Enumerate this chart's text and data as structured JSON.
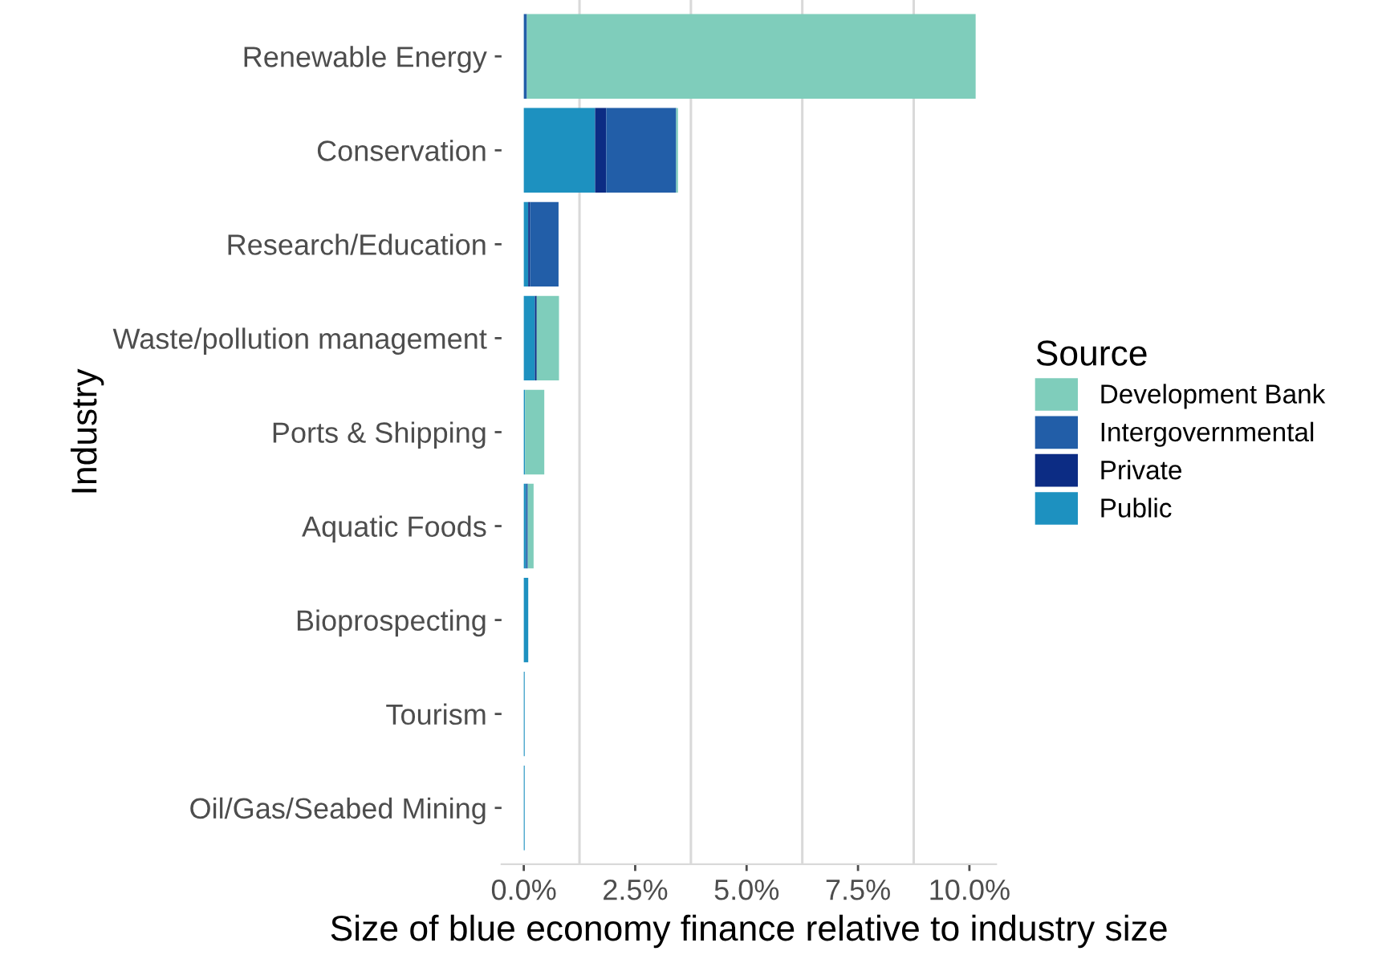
{
  "chart_data": {
    "type": "bar",
    "orientation": "horizontal",
    "stacked": true,
    "xlabel": "Size of blue economy finance relative to industry size",
    "ylabel": "Industry",
    "legend_title": "Source",
    "legend": "right",
    "grid": "x",
    "categories": [
      "Renewable Energy",
      "Conservation",
      "Research/Education",
      "Waste/pollution management",
      "Ports & Shipping",
      "Aquatic Foods",
      "Bioprospecting",
      "Tourism",
      "Oil/Gas/Seabed Mining"
    ],
    "xlim": [
      -0.5,
      10.6
    ],
    "xticks": [
      {
        "value": 0,
        "label": "0.0%"
      },
      {
        "value": 2.5,
        "label": "2.5%"
      },
      {
        "value": 5,
        "label": "5.0%"
      },
      {
        "value": 7.5,
        "label": "7.5%"
      },
      {
        "value": 10,
        "label": "10.0%"
      },
      {
        "value": 1.25,
        "label": null
      },
      {
        "value": 3.75,
        "label": null
      },
      {
        "value": 6.25,
        "label": null
      },
      {
        "value": 8.75,
        "label": null
      }
    ],
    "series": [
      {
        "name": "Public",
        "color": "#1d91c0",
        "values": [
          0,
          1.6,
          0.1,
          0.25,
          0.03,
          0.05,
          0.1,
          0.02,
          0.02
        ]
      },
      {
        "name": "Private",
        "color": "#0c2c84",
        "values": [
          0,
          0.25,
          0.04,
          0.04,
          0,
          0,
          0,
          0,
          0
        ]
      },
      {
        "name": "Intergovernmental",
        "color": "#225ea8",
        "values": [
          0.07,
          1.57,
          0.64,
          0,
          0,
          0.04,
          0,
          0,
          0
        ]
      },
      {
        "name": "Development Bank",
        "color": "#7fcdbb",
        "values": [
          10.07,
          0.04,
          0,
          0.5,
          0.43,
          0.13,
          0,
          0,
          0
        ]
      }
    ]
  }
}
